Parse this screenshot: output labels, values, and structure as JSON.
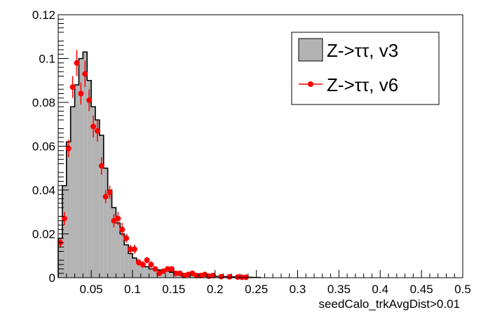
{
  "chart_data": {
    "type": "bar",
    "xlabel": "seedCalo_trkAvgDist>0.01",
    "ylabel": "",
    "xlim": [
      0.01,
      0.5
    ],
    "ylim": [
      0,
      0.12
    ],
    "x_ticks": [
      0.05,
      0.1,
      0.15,
      0.2,
      0.25,
      0.3,
      0.35,
      0.4,
      0.45,
      0.5
    ],
    "x_tick_labels": [
      "0.05",
      "0.1",
      "0.15",
      "0.2",
      "0.25",
      "0.3",
      "0.35",
      "0.4",
      "0.45",
      "0.5"
    ],
    "y_ticks": [
      0,
      0.02,
      0.04,
      0.06,
      0.08,
      0.1,
      0.12
    ],
    "y_tick_labels": [
      "0",
      "0.02",
      "0.04",
      "0.06",
      "0.08",
      "0.1",
      "0.12"
    ],
    "bin_width": 0.005,
    "legend_position": "top-right",
    "grid": false,
    "series": [
      {
        "name": "Z->ττ, v3",
        "style": "filled-histogram",
        "fill_color": "#b3b3b3",
        "line_color": "#000000",
        "bin_low_edges": [
          0.01,
          0.015,
          0.02,
          0.025,
          0.03,
          0.035,
          0.04,
          0.045,
          0.05,
          0.055,
          0.06,
          0.065,
          0.07,
          0.075,
          0.08,
          0.085,
          0.09,
          0.095,
          0.1,
          0.105,
          0.11,
          0.115,
          0.12,
          0.125,
          0.13,
          0.135,
          0.14,
          0.145,
          0.15,
          0.155,
          0.16,
          0.165,
          0.17,
          0.175,
          0.18,
          0.185,
          0.19,
          0.195,
          0.2,
          0.205,
          0.21,
          0.215,
          0.22,
          0.225,
          0.23,
          0.235,
          0.24,
          0.245,
          0.25
        ],
        "values": [
          0.018,
          0.042,
          0.062,
          0.078,
          0.088,
          0.1,
          0.103,
          0.09,
          0.078,
          0.072,
          0.065,
          0.05,
          0.04,
          0.032,
          0.025,
          0.02,
          0.015,
          0.011,
          0.009,
          0.007,
          0.006,
          0.005,
          0.004,
          0.004,
          0.0035,
          0.003,
          0.003,
          0.0025,
          0.002,
          0.002,
          0.0015,
          0.0012,
          0.0012,
          0.001,
          0.001,
          0.0008,
          0.0008,
          0.0006,
          0.0006,
          0.0005,
          0.0005,
          0.0004,
          0.0004,
          0.0003,
          0.0003,
          0.0002,
          0.0002,
          0.0001,
          0.0001
        ]
      },
      {
        "name": "Z->ττ, v6",
        "style": "points-with-errors",
        "color": "#ff0000",
        "x": [
          0.0125,
          0.0175,
          0.0225,
          0.0275,
          0.0325,
          0.0375,
          0.0425,
          0.0475,
          0.0525,
          0.0575,
          0.0625,
          0.0675,
          0.0725,
          0.0775,
          0.0825,
          0.0875,
          0.0925,
          0.0975,
          0.1025,
          0.1075,
          0.1125,
          0.1175,
          0.1225,
          0.1275,
          0.1325,
          0.1375,
          0.1425,
          0.1475,
          0.1525,
          0.1575,
          0.1625,
          0.1675,
          0.1725,
          0.1775,
          0.1825,
          0.1875,
          0.1925,
          0.1975,
          0.2075,
          0.2175,
          0.2275,
          0.2325,
          0.2375
        ],
        "y": [
          0.016,
          0.027,
          0.059,
          0.087,
          0.098,
          0.084,
          0.093,
          0.081,
          0.069,
          0.067,
          0.051,
          0.037,
          0.039,
          0.026,
          0.027,
          0.022,
          0.018,
          0.013,
          0.013,
          0.007,
          0.006,
          0.008,
          0.006,
          0.004,
          0.002,
          0.003,
          0.004,
          0.004,
          0.002,
          0.002,
          0.001,
          0.0015,
          0.002,
          0.001,
          0.001,
          0.0015,
          0.0007,
          0.001,
          0.0005,
          0.0004,
          0.0003,
          0.0002,
          0.0002
        ],
        "yerr": [
          0.002,
          0.003,
          0.004,
          0.005,
          0.006,
          0.005,
          0.006,
          0.005,
          0.005,
          0.005,
          0.004,
          0.003,
          0.003,
          0.003,
          0.003,
          0.003,
          0.002,
          0.002,
          0.002,
          0.0015,
          0.0015,
          0.0015,
          0.0015,
          0.001,
          0.001,
          0.001,
          0.001,
          0.001,
          0.001,
          0.001,
          0.0008,
          0.0008,
          0.0008,
          0.0006,
          0.0006,
          0.0006,
          0.0005,
          0.0005,
          0.0004,
          0.0004,
          0.0003,
          0.0003,
          0.0003
        ]
      }
    ]
  }
}
